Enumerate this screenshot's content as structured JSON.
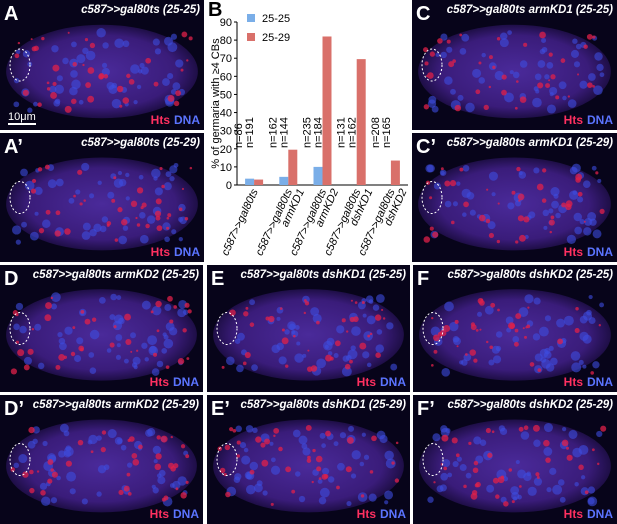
{
  "panels": [
    {
      "letter": "A",
      "title": "c587>>gal80ts (25-25)",
      "scale_bar": "10μm"
    },
    {
      "letter": "A’",
      "title": "c587>>gal80ts (25-29)"
    },
    {
      "letter": "C",
      "title": "c587>>gal80ts armKD1 (25-25)"
    },
    {
      "letter": "C’",
      "title": "c587>>gal80ts armKD1 (25-29)"
    },
    {
      "letter": "D",
      "title": "c587>>gal80ts armKD2 (25-25)"
    },
    {
      "letter": "D’",
      "title": "c587>>gal80ts armKD2 (25-29)"
    },
    {
      "letter": "E",
      "title": "c587>>gal80ts dshKD1 (25-25)"
    },
    {
      "letter": "E’",
      "title": "c587>>gal80ts dshKD1 (25-29)"
    },
    {
      "letter": "F",
      "title": "c587>>gal80ts dshKD2 (25-25)"
    },
    {
      "letter": "F’",
      "title": "c587>>gal80ts dshKD2 (25-29)"
    }
  ],
  "stain_labels": [
    "Hts",
    "DNA"
  ],
  "chart_data": {
    "type": "bar",
    "letter": "B",
    "y_label": "% of germaria with ≥4 CBs",
    "categories": [
      [
        "c587>>gal80ts"
      ],
      [
        "c587>>gal80ts",
        "armKD1"
      ],
      [
        "c587>>gal80ts",
        "armKD2"
      ],
      [
        "c587>>gal80ts",
        "dshKD1"
      ],
      [
        "c587>>gal80ts",
        "dshKD2"
      ]
    ],
    "series": [
      {
        "name": "25-25",
        "color": "#7aaee8",
        "values": [
          3.5,
          4.5,
          10,
          0,
          0
        ],
        "n_labels": [
          "n=86",
          "n=162",
          "n=235",
          "n=131",
          "n=208"
        ]
      },
      {
        "name": "25-29",
        "color": "#d9706a",
        "values": [
          3,
          19.5,
          82,
          69.5,
          13.5
        ],
        "n_labels": [
          "n=191",
          "n=144",
          "n=184",
          "n=162",
          "n=165"
        ]
      }
    ],
    "ylim": [
      0,
      90
    ],
    "yticks": [
      0,
      10,
      20,
      30,
      40,
      50,
      60,
      70,
      80,
      90
    ]
  }
}
